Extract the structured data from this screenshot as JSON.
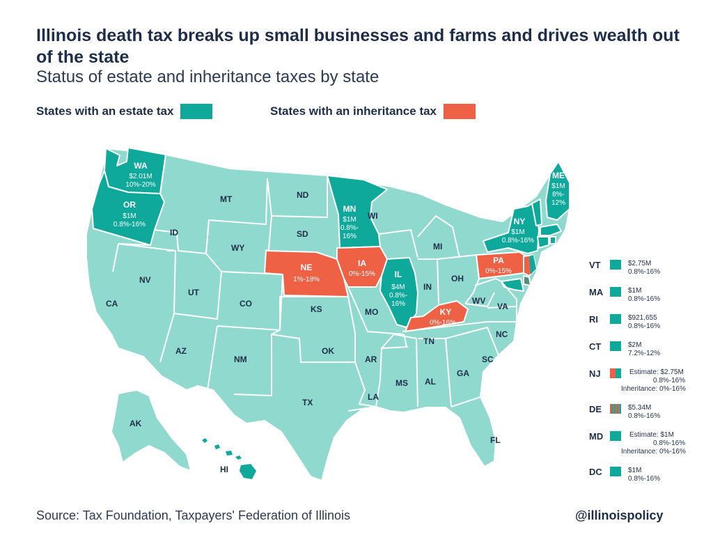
{
  "header": {
    "title": "Illinois death tax breaks up small businesses and farms and drives wealth out of the state",
    "subtitle": "Status of estate and inheritance taxes by state"
  },
  "legend": {
    "estate_label": "States with an estate tax",
    "inheritance_label": "States with an inheritance tax"
  },
  "colors": {
    "estate": "#0fa99c",
    "inheritance": "#ef6145",
    "none": "#8fd9cf",
    "text": "#1e2e4a"
  },
  "map": {
    "states": {
      "WA": {
        "label": "WA",
        "line1": "$2.01M",
        "line2": "10%-20%",
        "tax": "estate"
      },
      "OR": {
        "label": "OR",
        "line1": "$1M",
        "line2": "0.8%-16%",
        "tax": "estate"
      },
      "MN": {
        "label": "MN",
        "line1": "$1M",
        "line2": "0.8%-",
        "line3": "16%",
        "tax": "estate"
      },
      "IL": {
        "label": "IL",
        "line1": "$4M",
        "line2": "0.8%-",
        "line3": "16%",
        "tax": "estate"
      },
      "NY": {
        "label": "NY",
        "line1": "$1M",
        "line2": "0.8%-16%",
        "tax": "estate"
      },
      "ME": {
        "label": "ME",
        "line1": "$1M",
        "line2": "8%-",
        "line3": "12%",
        "tax": "estate"
      },
      "NE": {
        "label": "NE",
        "line1": "1%-18%",
        "tax": "inheritance"
      },
      "IA": {
        "label": "IA",
        "line1": "0%-15%",
        "tax": "inheritance"
      },
      "KY": {
        "label": "KY",
        "line1": "0%-16%",
        "tax": "inheritance"
      },
      "PA": {
        "label": "PA",
        "line1": "0%-15%",
        "tax": "inheritance"
      }
    },
    "plain_labels": [
      "MT",
      "ND",
      "ID",
      "SD",
      "WY",
      "NV",
      "UT",
      "CO",
      "CA",
      "KS",
      "MO",
      "WI",
      "MI",
      "OH",
      "IN",
      "WV",
      "VA",
      "NC",
      "TN",
      "OK",
      "AR",
      "AZ",
      "NM",
      "TX",
      "MS",
      "AL",
      "GA",
      "SC",
      "LA",
      "FL",
      "AK",
      "HI"
    ]
  },
  "side_list": [
    {
      "abbr": "VT",
      "lines": [
        "$2.75M",
        "0.8%-16%"
      ],
      "swatch": "estate"
    },
    {
      "abbr": "MA",
      "lines": [
        "$1M",
        "0.8%-16%"
      ],
      "swatch": "estate"
    },
    {
      "abbr": "RI",
      "lines": [
        "$921,655",
        "0.8%-16%"
      ],
      "swatch": "estate"
    },
    {
      "abbr": "CT",
      "lines": [
        "$2M",
        "7.2%-12%"
      ],
      "swatch": "estate"
    },
    {
      "abbr": "NJ",
      "lines": [
        "Estimate:  $2.75M",
        "0.8%-16%",
        "Inheritance: 0%-16%"
      ],
      "swatch": "both"
    },
    {
      "abbr": "DE",
      "lines": [
        "$5.34M",
        "0.8%-16%"
      ],
      "swatch": "striped"
    },
    {
      "abbr": "MD",
      "lines": [
        "Estimate:  $1M",
        "0.8%-16%",
        "Inheritance: 0%-16%"
      ],
      "swatch": "estate"
    },
    {
      "abbr": "DC",
      "lines": [
        "$1M",
        "0.8%-16%"
      ],
      "swatch": "estate"
    }
  ],
  "footer": {
    "source": "Source: Tax Foundation, Taxpayers' Federation of Illinois",
    "handle": "@illinoispolicy"
  }
}
